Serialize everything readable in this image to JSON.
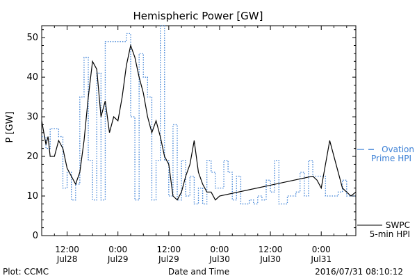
{
  "chart_data": {
    "type": "line",
    "title": "Hemispheric Power [GW]",
    "xlabel": "Date and Time",
    "ylabel": "P [GW]",
    "ylim": [
      0,
      53
    ],
    "y_ticks": [
      0,
      10,
      20,
      30,
      40,
      50
    ],
    "x_ticks": [
      {
        "t": "2016-07-28 12:00",
        "time": "12:00",
        "date": "Jul28"
      },
      {
        "t": "2016-07-29 00:00",
        "time": "0:00",
        "date": "Jul29"
      },
      {
        "t": "2016-07-29 12:00",
        "time": "12:00",
        "date": "Jul29"
      },
      {
        "t": "2016-07-30 00:00",
        "time": "0:00",
        "date": "Jul30"
      },
      {
        "t": "2016-07-30 12:00",
        "time": "12:00",
        "date": "Jul30"
      },
      {
        "t": "2016-07-31 00:00",
        "time": "0:00",
        "date": "Jul31"
      }
    ],
    "xlim": [
      "2016-07-28 06:00",
      "2016-07-31 08:10"
    ],
    "grid": false,
    "legend_placement": "right",
    "series": [
      {
        "name": "Ovation Prime HPI",
        "legend_lines": [
          "Ovation",
          "Prime HPI"
        ],
        "style": "dotted-step",
        "color": "#3a7fd5",
        "points": [
          [
            "2016-07-28 06:00",
            25
          ],
          [
            "2016-07-28 07:00",
            22
          ],
          [
            "2016-07-28 08:00",
            27
          ],
          [
            "2016-07-28 10:00",
            25
          ],
          [
            "2016-07-28 11:00",
            12
          ],
          [
            "2016-07-28 12:00",
            16
          ],
          [
            "2016-07-28 13:00",
            9
          ],
          [
            "2016-07-28 14:00",
            13
          ],
          [
            "2016-07-28 15:00",
            35
          ],
          [
            "2016-07-28 16:00",
            45
          ],
          [
            "2016-07-28 17:00",
            19
          ],
          [
            "2016-07-28 18:00",
            9
          ],
          [
            "2016-07-28 19:00",
            41
          ],
          [
            "2016-07-28 20:00",
            9
          ],
          [
            "2016-07-28 21:00",
            49
          ],
          [
            "2016-07-29 00:00",
            49
          ],
          [
            "2016-07-29 02:00",
            51
          ],
          [
            "2016-07-29 03:00",
            30
          ],
          [
            "2016-07-29 04:00",
            9
          ],
          [
            "2016-07-29 05:00",
            46
          ],
          [
            "2016-07-29 06:00",
            40
          ],
          [
            "2016-07-29 07:00",
            35
          ],
          [
            "2016-07-29 08:00",
            9
          ],
          [
            "2016-07-29 09:00",
            19
          ],
          [
            "2016-07-29 10:00",
            53
          ],
          [
            "2016-07-29 11:00",
            19
          ],
          [
            "2016-07-29 12:00",
            10
          ],
          [
            "2016-07-29 13:00",
            28
          ],
          [
            "2016-07-29 14:00",
            9
          ],
          [
            "2016-07-29 15:00",
            19
          ],
          [
            "2016-07-29 16:00",
            10
          ],
          [
            "2016-07-29 17:00",
            15
          ],
          [
            "2016-07-29 18:00",
            8
          ],
          [
            "2016-07-29 19:00",
            12
          ],
          [
            "2016-07-29 20:00",
            8
          ],
          [
            "2016-07-29 21:00",
            19
          ],
          [
            "2016-07-29 22:00",
            16
          ],
          [
            "2016-07-29 23:00",
            12
          ],
          [
            "2016-07-30 01:00",
            19
          ],
          [
            "2016-07-30 02:00",
            16
          ],
          [
            "2016-07-30 03:00",
            9
          ],
          [
            "2016-07-30 04:00",
            15
          ],
          [
            "2016-07-30 05:00",
            8
          ],
          [
            "2016-07-30 07:00",
            9
          ],
          [
            "2016-07-30 08:00",
            8
          ],
          [
            "2016-07-30 09:00",
            10
          ],
          [
            "2016-07-30 10:00",
            9
          ],
          [
            "2016-07-30 11:00",
            14
          ],
          [
            "2016-07-30 12:00",
            11
          ],
          [
            "2016-07-30 13:00",
            19
          ],
          [
            "2016-07-30 14:00",
            8
          ],
          [
            "2016-07-30 16:00",
            10
          ],
          [
            "2016-07-30 18:00",
            11
          ],
          [
            "2016-07-30 19:00",
            16
          ],
          [
            "2016-07-30 20:00",
            10
          ],
          [
            "2016-07-30 21:00",
            19
          ],
          [
            "2016-07-30 22:00",
            15
          ],
          [
            "2016-07-31 01:00",
            10
          ],
          [
            "2016-07-31 04:00",
            11
          ],
          [
            "2016-07-31 05:00",
            14
          ],
          [
            "2016-07-31 06:00",
            10
          ],
          [
            "2016-07-31 08:10",
            10
          ]
        ]
      },
      {
        "name": "SWPC 5-min HPI",
        "legend_lines": [
          "SWPC",
          "5-min HPI"
        ],
        "style": "solid",
        "color": "#000000",
        "points": [
          [
            "2016-07-28 06:00",
            29
          ],
          [
            "2016-07-28 07:00",
            23
          ],
          [
            "2016-07-28 07:30",
            25
          ],
          [
            "2016-07-28 08:00",
            20
          ],
          [
            "2016-07-28 09:00",
            20
          ],
          [
            "2016-07-28 10:00",
            24
          ],
          [
            "2016-07-28 11:00",
            22
          ],
          [
            "2016-07-28 12:00",
            17
          ],
          [
            "2016-07-28 13:00",
            15
          ],
          [
            "2016-07-28 14:00",
            13
          ],
          [
            "2016-07-28 15:00",
            16
          ],
          [
            "2016-07-28 16:00",
            24
          ],
          [
            "2016-07-28 17:00",
            35
          ],
          [
            "2016-07-28 18:00",
            44
          ],
          [
            "2016-07-28 19:00",
            42
          ],
          [
            "2016-07-28 19:30",
            36
          ],
          [
            "2016-07-28 20:00",
            30
          ],
          [
            "2016-07-28 21:00",
            34
          ],
          [
            "2016-07-28 22:00",
            26
          ],
          [
            "2016-07-28 23:00",
            30
          ],
          [
            "2016-07-29 00:00",
            29
          ],
          [
            "2016-07-29 01:00",
            35
          ],
          [
            "2016-07-29 02:00",
            43
          ],
          [
            "2016-07-29 03:00",
            48
          ],
          [
            "2016-07-29 04:00",
            45
          ],
          [
            "2016-07-29 05:00",
            40
          ],
          [
            "2016-07-29 06:00",
            36
          ],
          [
            "2016-07-29 07:00",
            30
          ],
          [
            "2016-07-29 08:00",
            26
          ],
          [
            "2016-07-29 09:00",
            29
          ],
          [
            "2016-07-29 10:00",
            25
          ],
          [
            "2016-07-29 11:00",
            20
          ],
          [
            "2016-07-29 12:00",
            18
          ],
          [
            "2016-07-29 13:00",
            10
          ],
          [
            "2016-07-29 14:00",
            9
          ],
          [
            "2016-07-29 15:00",
            11
          ],
          [
            "2016-07-29 16:00",
            15
          ],
          [
            "2016-07-29 17:00",
            18
          ],
          [
            "2016-07-29 18:00",
            24
          ],
          [
            "2016-07-29 19:00",
            16
          ],
          [
            "2016-07-29 20:00",
            13
          ],
          [
            "2016-07-29 21:00",
            11
          ],
          [
            "2016-07-29 22:00",
            11
          ],
          [
            "2016-07-29 23:00",
            9
          ],
          [
            "2016-07-30 00:00",
            10
          ],
          [
            "2016-07-30 22:00",
            15
          ],
          [
            "2016-07-30 23:00",
            14
          ],
          [
            "2016-07-31 00:00",
            12
          ],
          [
            "2016-07-31 01:00",
            18
          ],
          [
            "2016-07-31 02:00",
            24
          ],
          [
            "2016-07-31 03:00",
            20
          ],
          [
            "2016-07-31 04:00",
            16
          ],
          [
            "2016-07-31 05:00",
            12
          ],
          [
            "2016-07-31 06:00",
            11
          ],
          [
            "2016-07-31 07:00",
            10
          ],
          [
            "2016-07-31 08:10",
            11
          ]
        ]
      }
    ]
  },
  "footer": {
    "left": "Plot: CCMC",
    "right": "2016/07/31 08:10:12"
  }
}
